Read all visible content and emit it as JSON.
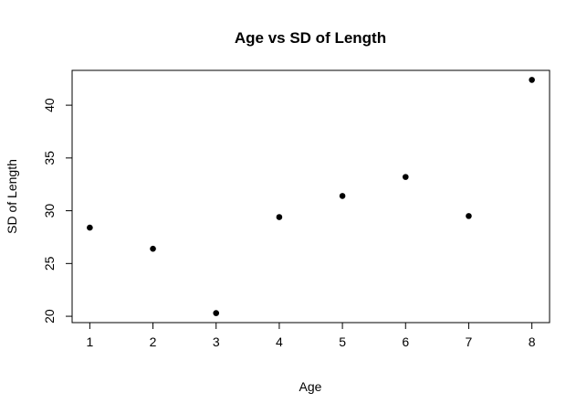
{
  "chart_data": {
    "type": "scatter",
    "title": "Age vs SD of Length",
    "xlabel": "Age",
    "ylabel": "SD of Length",
    "x": [
      1,
      2,
      3,
      4,
      5,
      6,
      7,
      8
    ],
    "y": [
      28.4,
      26.4,
      20.3,
      29.4,
      31.4,
      33.2,
      29.5,
      42.4
    ],
    "xlim": [
      0.72,
      8.28
    ],
    "ylim": [
      19.4,
      43.3
    ],
    "xticks": [
      1,
      2,
      3,
      4,
      5,
      6,
      7,
      8
    ],
    "yticks": [
      20,
      25,
      30,
      35,
      40
    ],
    "grid": false,
    "legend": "none",
    "marker_color": "#000000"
  }
}
